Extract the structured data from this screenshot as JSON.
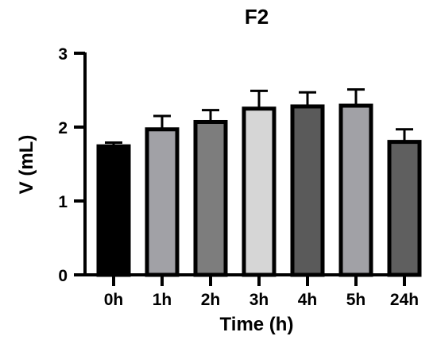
{
  "chart_data": {
    "type": "bar",
    "title": "F2",
    "xlabel": "Time (h)",
    "ylabel": "V (mL)",
    "ylim": [
      0,
      3
    ],
    "yticks": [
      0,
      1,
      2,
      3
    ],
    "grid": false,
    "categories": [
      "0h",
      "1h",
      "2h",
      "3h",
      "4h",
      "5h",
      "24h"
    ],
    "values": [
      1.74,
      1.97,
      2.07,
      2.25,
      2.28,
      2.29,
      1.8
    ],
    "errors": [
      0.05,
      0.18,
      0.16,
      0.24,
      0.19,
      0.22,
      0.17
    ],
    "colors": [
      "#000000",
      "#a1a1a6",
      "#7d7d7d",
      "#d6d6d6",
      "#5a5a5a",
      "#a1a1a6",
      "#5f5f5f"
    ]
  }
}
